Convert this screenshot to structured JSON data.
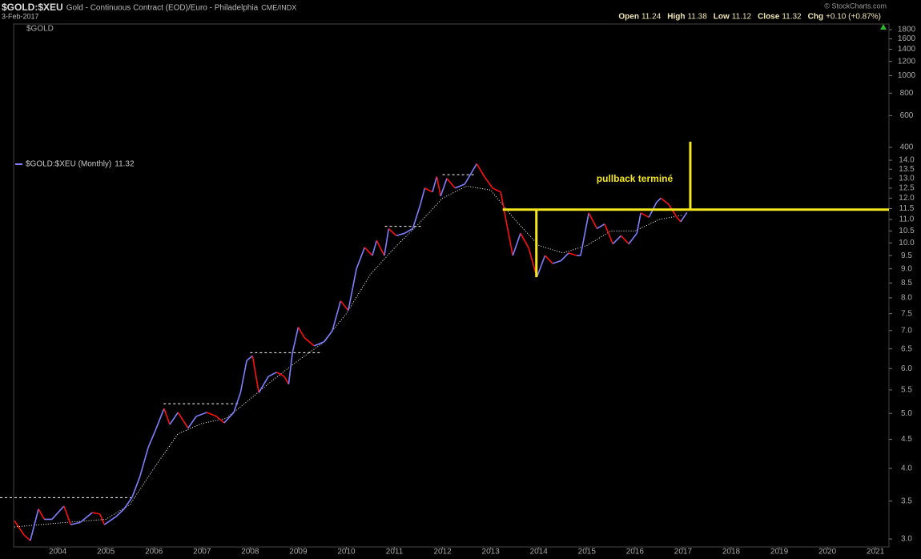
{
  "header": {
    "symbol": "$GOLD:$XEU",
    "description": "Gold - Continuous Contract (EOD)/Euro - Philadelphia",
    "exchange": "CME/INDX",
    "date": "3-Feb-2017",
    "credit": "© StockCharts.com",
    "quote": [
      {
        "label": "Open",
        "value": 11.24
      },
      {
        "label": "High",
        "value": 11.38
      },
      {
        "label": "Low",
        "value": 11.12
      },
      {
        "label": "Close",
        "value": 11.32
      },
      {
        "label": "Chg",
        "value": "+0.10 (+0.87%)"
      }
    ]
  },
  "chart_data": {
    "type": "line",
    "log_scale": true,
    "grid": false,
    "overlay_label": "$GOLD",
    "xlim": [
      2002.8,
      2021.28
    ],
    "xticks": [
      2004,
      2005,
      2006,
      2007,
      2008,
      2009,
      2010,
      2011,
      2012,
      2013,
      2014,
      2015,
      2016,
      2017,
      2018,
      2019,
      2020,
      2021
    ],
    "ylim": [
      2.904,
      24.36
    ],
    "yticks": [
      {
        "value": 3,
        "label": "3.0"
      },
      3.5,
      {
        "value": 4,
        "label": "4.0"
      },
      4.5,
      {
        "value": 5,
        "label": "5.0"
      },
      5.5,
      {
        "value": 6,
        "label": "6.0"
      },
      6.5,
      {
        "value": 7,
        "label": "7.0"
      },
      7.5,
      {
        "value": 8,
        "label": "8.0"
      },
      8.5,
      {
        "value": 9,
        "label": "9.0"
      },
      9.5,
      {
        "value": 10,
        "label": "10.0"
      },
      10.5,
      {
        "value": 11,
        "label": "11.0"
      },
      11.5,
      {
        "value": 12,
        "label": "12.0"
      },
      12.5,
      {
        "value": 13,
        "label": "13.0"
      },
      13.5,
      {
        "value": 14,
        "label": "14.0"
      }
    ],
    "y2lim": [
      2.42,
      1934
    ],
    "y2ticks": [
      400,
      600,
      800,
      1000,
      1200,
      1400,
      1600,
      1800
    ],
    "series": [
      {
        "name": "$GOLD:$XEU (Monthly)",
        "last": 11.32,
        "up_color": "#7f7fff",
        "down_color": "#ff1010",
        "x": [
          2003.1,
          2003.3,
          2003.43,
          2003.6,
          2003.72,
          2003.88,
          2004.13,
          2004.27,
          2004.47,
          2004.72,
          2004.88,
          2004.97,
          2005.22,
          2005.38,
          2005.55,
          2005.71,
          2005.88,
          2006.05,
          2006.21,
          2006.33,
          2006.5,
          2006.71,
          2006.88,
          2007.1,
          2007.3,
          2007.46,
          2007.66,
          2007.8,
          2007.93,
          2008.05,
          2008.18,
          2008.38,
          2008.55,
          2008.71,
          2008.8,
          2008.88,
          2009.0,
          2009.13,
          2009.33,
          2009.54,
          2009.71,
          2009.88,
          2010.04,
          2010.21,
          2010.38,
          2010.54,
          2010.63,
          2010.79,
          2010.88,
          2011.04,
          2011.21,
          2011.38,
          2011.54,
          2011.63,
          2011.79,
          2011.88,
          2011.96,
          2012.09,
          2012.26,
          2012.46,
          2012.71,
          2012.87,
          2013.04,
          2013.21,
          2013.29,
          2013.46,
          2013.62,
          2013.79,
          2013.96,
          2014.13,
          2014.29,
          2014.46,
          2014.62,
          2014.79,
          2014.87,
          2015.04,
          2015.21,
          2015.37,
          2015.54,
          2015.71,
          2015.87,
          2016.04,
          2016.12,
          2016.29,
          2016.45,
          2016.54,
          2016.7,
          2016.87,
          2016.95,
          2017.08
        ],
        "values": [
          3.23,
          3.05,
          2.98,
          3.39,
          3.25,
          3.25,
          3.43,
          3.18,
          3.21,
          3.34,
          3.32,
          3.18,
          3.29,
          3.39,
          3.56,
          3.87,
          4.35,
          4.71,
          5.1,
          4.78,
          5.02,
          4.71,
          4.94,
          5.02,
          4.94,
          4.81,
          5.02,
          5.44,
          6.2,
          6.32,
          5.44,
          5.81,
          5.91,
          5.81,
          5.63,
          6.4,
          7.1,
          6.8,
          6.58,
          6.69,
          7.0,
          7.9,
          7.6,
          9.0,
          9.82,
          9.5,
          10.1,
          9.5,
          10.6,
          10.3,
          10.4,
          10.6,
          11.7,
          12.5,
          12.3,
          13.1,
          12.1,
          13.0,
          12.5,
          12.7,
          13.8,
          13.1,
          12.5,
          12.3,
          11.3,
          9.5,
          10.4,
          9.8,
          8.7,
          9.5,
          9.2,
          9.3,
          9.6,
          9.5,
          9.5,
          11.3,
          10.6,
          10.8,
          9.96,
          10.3,
          9.96,
          10.4,
          11.3,
          11.1,
          11.8,
          12.0,
          11.7,
          11.1,
          10.9,
          11.32
        ]
      },
      {
        "color": "#ffffff",
        "x": [
          2003.1,
          2004.0,
          2005.0,
          2005.5,
          2006.0,
          2006.5,
          2007.0,
          2007.5,
          2008.0,
          2008.5,
          2009.0,
          2009.5,
          2010.0,
          2010.5,
          2011.0,
          2011.5,
          2012.0,
          2012.5,
          2013.0,
          2013.5,
          2014.0,
          2014.5,
          2015.0,
          2015.5,
          2016.0,
          2016.5,
          2017.0
        ],
        "values": [
          3.15,
          3.2,
          3.25,
          3.45,
          4.0,
          4.6,
          4.8,
          4.9,
          5.3,
          5.75,
          6.2,
          6.65,
          7.5,
          8.8,
          9.8,
          10.8,
          12.0,
          12.6,
          12.4,
          11.0,
          9.9,
          9.6,
          9.9,
          10.5,
          10.5,
          11.0,
          11.2
        ]
      }
    ],
    "resistance_lines": [
      {
        "value": 3.55,
        "x": [
          2002.8,
          2005.6
        ]
      },
      {
        "value": 5.2,
        "x": [
          2006.2,
          2007.8
        ]
      },
      {
        "value": 6.4,
        "x": [
          2008.0,
          2009.5
        ]
      },
      {
        "value": 10.7,
        "x": [
          2010.8,
          2011.6
        ]
      },
      {
        "value": 13.2,
        "x": [
          2012.0,
          2012.7
        ]
      }
    ],
    "annotation_color": "#f5e71c",
    "annotation_lines": [
      {
        "x": [
          2013.25,
          2021.28
        ],
        "y": [
          11.45,
          11.45
        ]
      },
      {
        "x": [
          2013.95,
          2013.95
        ],
        "y": [
          8.7,
          11.45
        ]
      },
      {
        "x": [
          2017.15,
          2017.15
        ],
        "y": [
          11.45,
          15.1
        ]
      }
    ],
    "annotation": {
      "text": "pullback terminé",
      "x": 2015.2,
      "y": 12.95
    }
  }
}
